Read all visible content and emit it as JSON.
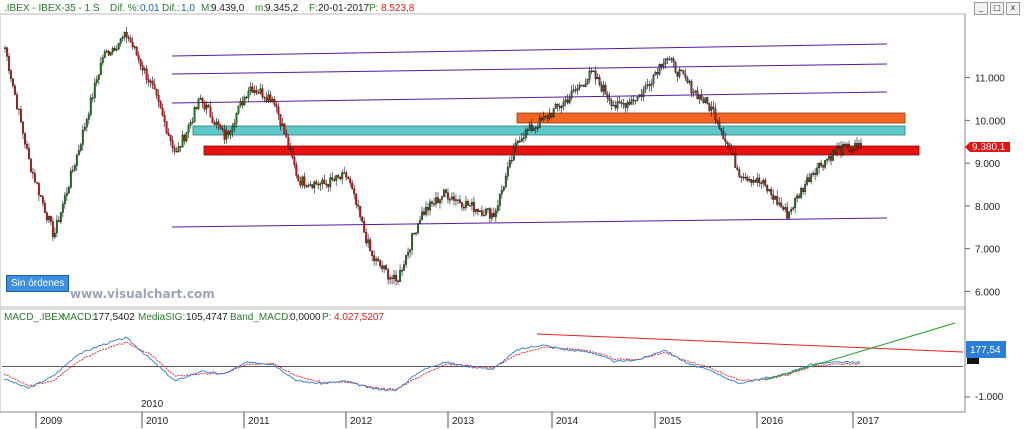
{
  "header": {
    "symbol": ".IBEX - IBEX-35 -  1 S",
    "dif_pct_label": "Dif. %:",
    "dif_pct_value": "0,01",
    "dif_label": "Dif.:",
    "dif_value": "1,0",
    "max_label": "M:",
    "max_value": "9.439,0",
    "min_label": "m:",
    "min_value": "9.345,2",
    "date_label": "F:",
    "date_value": "20-01-2017",
    "p_label": "P:",
    "p_value": "8.523,8",
    "window_buttons": [
      "_",
      "□",
      "x"
    ]
  },
  "colors": {
    "up_candle": "#1f7a1f",
    "down_candle": "#d01010",
    "channel_line": "#5a1a9a",
    "zone_orange": "#f26522",
    "zone_teal": "#5ec8c8",
    "zone_red": "#e81010",
    "macd_line": "#2e7bd6",
    "signal_line": "#e02020",
    "trend_red": "#e02020",
    "trend_green": "#22a022",
    "price_label_bg": "#e81010",
    "macd_label_bg": "#2a7fd4"
  },
  "watermark": "www.visualchart.com",
  "orders_button": "Sin órdenes",
  "price_axis": {
    "ticks": [
      "11.000",
      "10.000",
      "9.000",
      "8.000",
      "7.000",
      "6.000"
    ],
    "current_label": "9.380,1"
  },
  "macd_panel": {
    "title": "MACD_.IBEX",
    "macd_label": "MACD:",
    "macd_value": "177,5402",
    "signal_label": "MediaSIG:",
    "signal_value": "105,4747",
    "band_label": "Band_MACD:",
    "band_value": "0,0000",
    "p_label": "P:",
    "p_value": "4.027,5207",
    "current_label": "177,54",
    "tick_label": "-1.000"
  },
  "time_axis": {
    "years": [
      "2009",
      "2010",
      "2011",
      "2012",
      "2013",
      "2014",
      "2015",
      "2016",
      "2017"
    ],
    "extra_label": "2010"
  },
  "chart_data": {
    "type": "candlestick",
    "interval": "weekly",
    "x": [
      "2008-10",
      "2009-01",
      "2009-03",
      "2009-06",
      "2009-09",
      "2009-12",
      "2010-02",
      "2010-05",
      "2010-08",
      "2010-11",
      "2011-02",
      "2011-05",
      "2011-08",
      "2011-11",
      "2012-02",
      "2012-05",
      "2012-07",
      "2012-10",
      "2013-01",
      "2013-04",
      "2013-07",
      "2013-10",
      "2014-01",
      "2014-04",
      "2014-07",
      "2014-10",
      "2015-01",
      "2015-04",
      "2015-07",
      "2015-10",
      "2016-01",
      "2016-04",
      "2016-06",
      "2016-09",
      "2016-12",
      "2017-01"
    ],
    "close": [
      11700,
      9000,
      7300,
      9300,
      11500,
      12000,
      10800,
      9200,
      10500,
      9600,
      10800,
      10500,
      8600,
      8500,
      8700,
      6800,
      6200,
      7800,
      8300,
      8000,
      7800,
      9600,
      10000,
      10500,
      11100,
      10300,
      10600,
      11500,
      10800,
      10200,
      8800,
      8500,
      7800,
      8800,
      9300,
      9380
    ],
    "ylim": [
      5800,
      12300
    ],
    "channels": [
      "upper",
      "upper-middle",
      "middle",
      "lower"
    ],
    "zones": [
      {
        "color": "orange",
        "from": 9950,
        "to": 10150
      },
      {
        "color": "teal",
        "from": 9700,
        "to": 9900
      },
      {
        "color": "red",
        "from": 9150,
        "to": 9350
      }
    ],
    "macd": {
      "macd": [
        -500,
        -900,
        -400,
        500,
        900,
        1200,
        300,
        -600,
        -200,
        -300,
        200,
        100,
        -600,
        -700,
        -600,
        -900,
        -1000,
        -200,
        200,
        0,
        -100,
        700,
        900,
        700,
        600,
        200,
        300,
        700,
        100,
        -200,
        -700,
        -500,
        -300,
        100,
        177,
        177
      ],
      "signal": [
        -300,
        -800,
        -600,
        200,
        700,
        1000,
        500,
        -400,
        -300,
        -300,
        100,
        150,
        -400,
        -650,
        -650,
        -850,
        -950,
        -400,
        100,
        50,
        -50,
        500,
        800,
        750,
        650,
        300,
        300,
        600,
        200,
        -100,
        -550,
        -550,
        -350,
        0,
        100,
        105
      ],
      "zero": 0,
      "ylim": [
        -1300,
        1600
      ]
    }
  }
}
